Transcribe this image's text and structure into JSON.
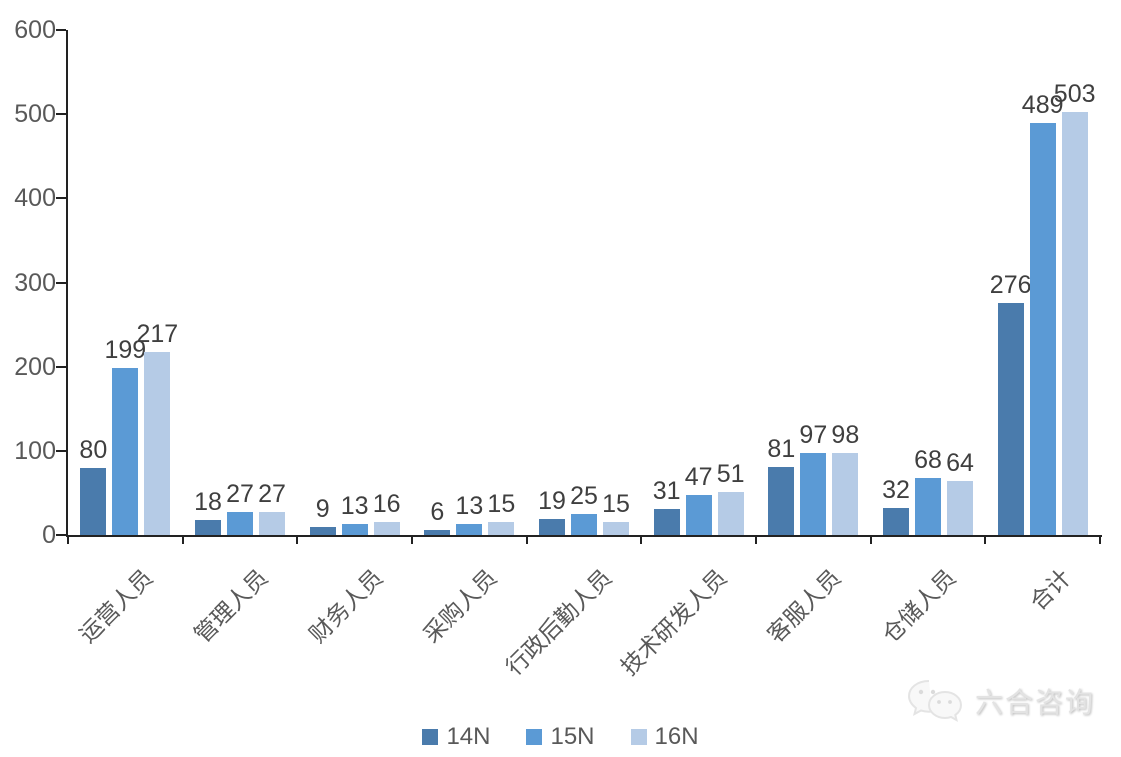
{
  "chart_data": {
    "type": "bar",
    "title": "",
    "categories": [
      "运营人员",
      "管理人员",
      "财务人员",
      "采购人员",
      "行政后勤人员",
      "技术研发人员",
      "客服人员",
      "仓储人员",
      "合计"
    ],
    "series": [
      {
        "name": "14N",
        "color": "#4a7bac",
        "values": [
          80,
          18,
          9,
          6,
          19,
          31,
          81,
          32,
          276
        ]
      },
      {
        "name": "15N",
        "color": "#5b9ad5",
        "values": [
          199,
          27,
          13,
          13,
          25,
          47,
          97,
          68,
          489
        ]
      },
      {
        "name": "16N",
        "color": "#b5cbe6",
        "values": [
          217,
          27,
          16,
          15,
          15,
          51,
          98,
          64,
          503
        ]
      }
    ],
    "ylim": [
      0,
      600
    ],
    "yticks": [
      0,
      100,
      200,
      300,
      400,
      500,
      600
    ],
    "xlabel": "",
    "ylabel": "",
    "grid": false,
    "data_labels": true,
    "legend_position": "bottom",
    "category_label_rotation_deg": 45
  },
  "colors": {
    "axis": "#222222",
    "tick_label": "#595959",
    "data_label": "#3f3f3f",
    "watermark": "#e3e3e3"
  },
  "watermark": {
    "icon": "wechat-icon",
    "text": "六合咨询"
  }
}
